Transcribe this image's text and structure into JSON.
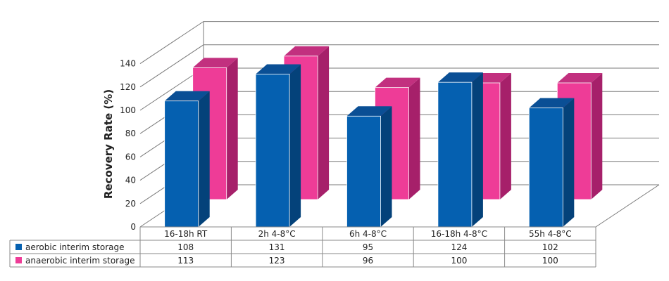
{
  "chart_data": {
    "type": "bar",
    "title": "",
    "xlabel": "",
    "ylabel": "Recovery Rate (%)",
    "ylim": [
      0,
      140
    ],
    "yticks": [
      0,
      20,
      40,
      60,
      80,
      100,
      120,
      140
    ],
    "categories": [
      "16-18h RT",
      "2h 4-8°C",
      "6h 4-8°C",
      "16-18h 4-8°C",
      "55h 4-8°C"
    ],
    "series": [
      {
        "name": "aerobic interim storage",
        "values": [
          108,
          131,
          95,
          124,
          102
        ]
      },
      {
        "name": "anaerobic interim storage",
        "values": [
          113,
          123,
          96,
          100,
          100
        ]
      }
    ],
    "grid": true,
    "legend": "data-table-left",
    "colors": {
      "aerobic_front": "#0560b0",
      "aerobic_side": "#04427a",
      "aerobic_top": "#0a4f95",
      "anaerobic_front": "#ee3c97",
      "anaerobic_side": "#a6206a",
      "anaerobic_top": "#c2307f"
    }
  }
}
